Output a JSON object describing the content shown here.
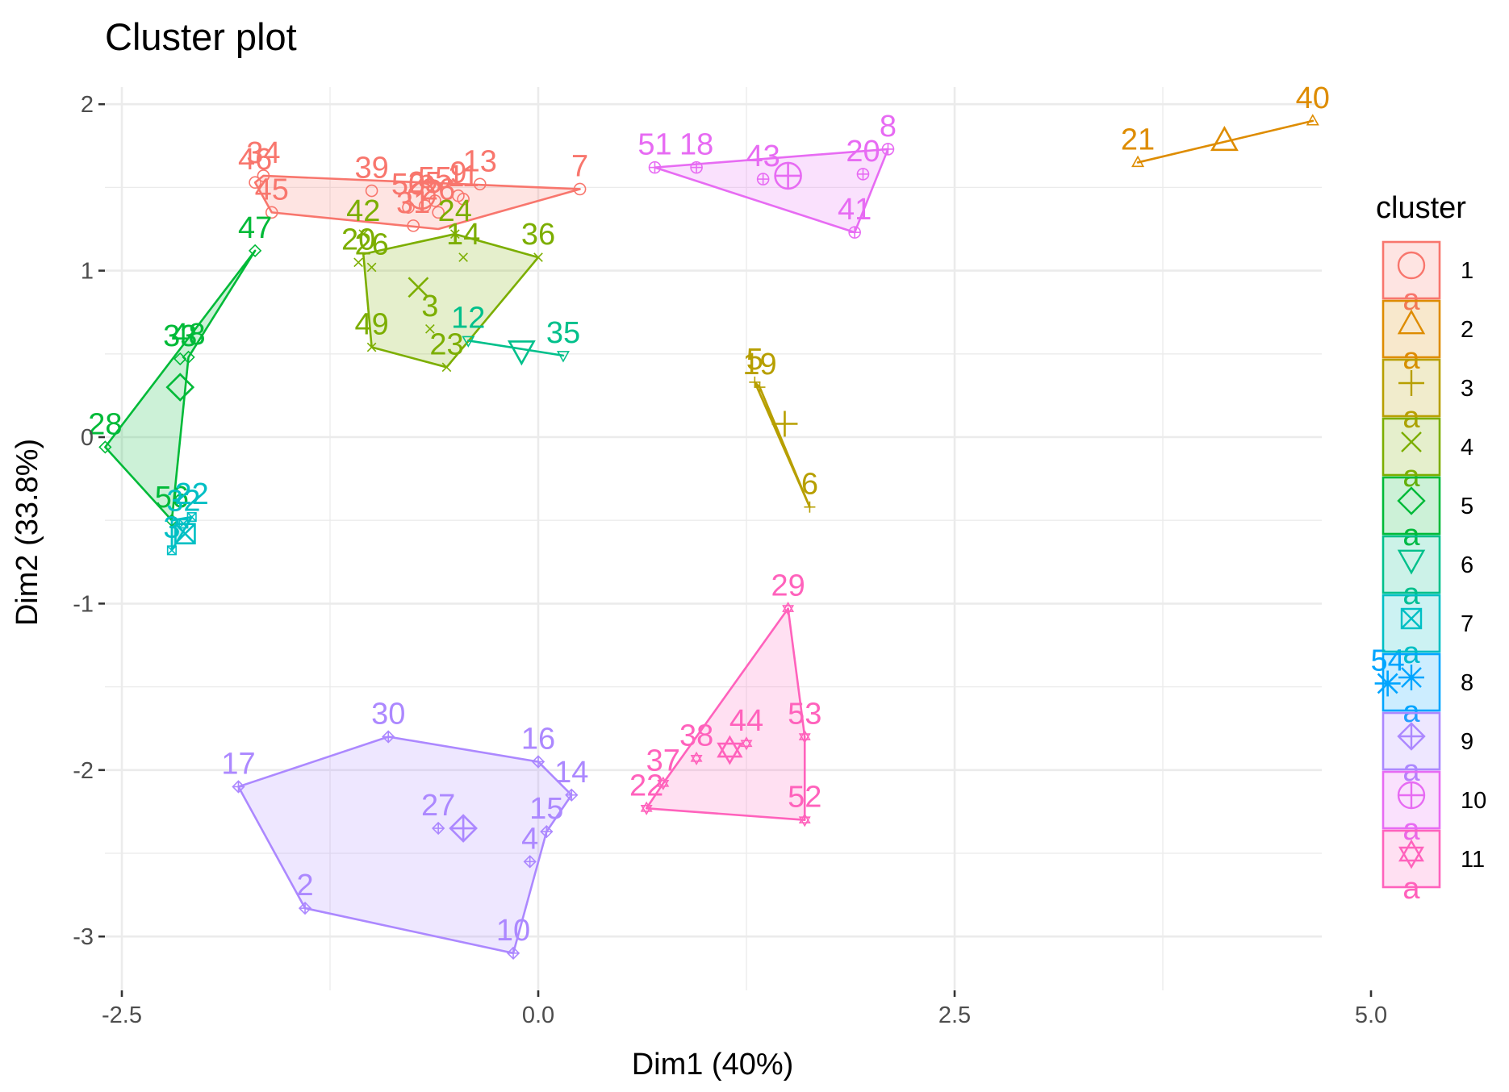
{
  "chart_data": {
    "type": "scatter",
    "title": "Cluster plot",
    "xlabel": "Dim1 (40%)",
    "ylabel": "Dim2 (33.8%)",
    "xlim": [
      -2.95,
      5.5
    ],
    "ylim": [
      -3.35,
      2.15
    ],
    "x_ticks": [
      -2.5,
      0.0,
      2.5,
      5.0
    ],
    "x_tick_labels": [
      "-2.5",
      "0.0",
      "2.5",
      "5.0"
    ],
    "y_ticks": [
      2,
      1,
      0,
      -1,
      -2,
      -3
    ],
    "y_tick_labels": [
      "2",
      "1",
      "0",
      "-1",
      "-2",
      "-3"
    ],
    "grid": true,
    "legend": {
      "title": "cluster",
      "position": "right",
      "key_letter": "a"
    },
    "clusters": [
      {
        "name": "1",
        "color": "#F8766D",
        "shape": "circle",
        "center": [
          -0.7,
          1.45
        ],
        "hull": [
          [
            -1.65,
            1.57
          ],
          [
            0.25,
            1.49
          ],
          [
            -0.6,
            1.25
          ],
          [
            -1.6,
            1.35
          ],
          [
            -1.7,
            1.53
          ]
        ],
        "points": [
          {
            "label": "34",
            "x": -1.65,
            "y": 1.57
          },
          {
            "label": "46",
            "x": -1.7,
            "y": 1.53
          },
          {
            "label": "39",
            "x": -1.0,
            "y": 1.48
          },
          {
            "label": "13",
            "x": -0.35,
            "y": 1.52
          },
          {
            "label": "9",
            "x": -0.48,
            "y": 1.45
          },
          {
            "label": "11",
            "x": -0.45,
            "y": 1.43
          },
          {
            "label": "7",
            "x": 0.25,
            "y": 1.49
          },
          {
            "label": "50",
            "x": -0.78,
            "y": 1.38
          },
          {
            "label": "25",
            "x": -0.68,
            "y": 1.39
          },
          {
            "label": "26",
            "x": -0.6,
            "y": 1.35
          },
          {
            "label": "55",
            "x": -0.62,
            "y": 1.42
          },
          {
            "label": "31",
            "x": -0.75,
            "y": 1.27
          },
          {
            "label": "45",
            "x": -1.6,
            "y": 1.35
          }
        ]
      },
      {
        "name": "2",
        "color": "#DE8C00",
        "shape": "triangle",
        "center": [
          4.12,
          1.78
        ],
        "hull": [
          [
            3.6,
            1.65
          ],
          [
            4.65,
            1.9
          ]
        ],
        "points": [
          {
            "label": "21",
            "x": 3.6,
            "y": 1.65
          },
          {
            "label": "40",
            "x": 4.65,
            "y": 1.9
          }
        ]
      },
      {
        "name": "3",
        "color": "#B79F00",
        "shape": "plus",
        "center": [
          1.48,
          0.08
        ],
        "hull": [
          [
            1.3,
            0.33
          ],
          [
            1.63,
            -0.42
          ],
          [
            1.33,
            0.3
          ]
        ],
        "points": [
          {
            "label": "5",
            "x": 1.3,
            "y": 0.33
          },
          {
            "label": "19",
            "x": 1.33,
            "y": 0.3
          },
          {
            "label": "6",
            "x": 1.63,
            "y": -0.42
          }
        ]
      },
      {
        "name": "4",
        "color": "#7CAE00",
        "shape": "cross",
        "center": [
          -0.72,
          0.9
        ],
        "hull": [
          [
            -1.05,
            1.1
          ],
          [
            -0.5,
            1.22
          ],
          [
            0.0,
            1.08
          ],
          [
            -0.55,
            0.42
          ],
          [
            -1.0,
            0.54
          ]
        ],
        "points": [
          {
            "label": "42",
            "x": -1.05,
            "y": 1.22
          },
          {
            "label": "20",
            "x": -1.08,
            "y": 1.05
          },
          {
            "label": "26",
            "x": -1.0,
            "y": 1.02
          },
          {
            "label": "24",
            "x": -0.5,
            "y": 1.22
          },
          {
            "label": "14",
            "x": -0.45,
            "y": 1.08
          },
          {
            "label": "36",
            "x": 0.0,
            "y": 1.08
          },
          {
            "label": "3",
            "x": -0.65,
            "y": 0.65
          },
          {
            "label": "49",
            "x": -1.0,
            "y": 0.54
          },
          {
            "label": "23",
            "x": -0.55,
            "y": 0.42
          }
        ]
      },
      {
        "name": "5",
        "color": "#00BA38",
        "shape": "diamond",
        "center": [
          -2.15,
          0.3
        ],
        "hull": [
          [
            -1.7,
            1.12
          ],
          [
            -2.1,
            0.48
          ],
          [
            -2.2,
            -0.5
          ],
          [
            -2.6,
            -0.06
          ]
        ],
        "points": [
          {
            "label": "47",
            "x": -1.7,
            "y": 1.12
          },
          {
            "label": "48",
            "x": -2.1,
            "y": 0.48
          },
          {
            "label": "33",
            "x": -2.15,
            "y": 0.47
          },
          {
            "label": "28",
            "x": -2.6,
            "y": -0.06
          },
          {
            "label": "56",
            "x": -2.2,
            "y": -0.5
          }
        ]
      },
      {
        "name": "6",
        "color": "#00C08B",
        "shape": "triangle-down",
        "center": [
          -0.1,
          0.52
        ],
        "hull": [
          [
            -0.42,
            0.58
          ],
          [
            0.15,
            0.49
          ]
        ],
        "points": [
          {
            "label": "12",
            "x": -0.42,
            "y": 0.58
          },
          {
            "label": "35",
            "x": 0.15,
            "y": 0.49
          }
        ]
      },
      {
        "name": "7",
        "color": "#00BFC4",
        "shape": "square-cross",
        "center": [
          -2.12,
          -0.58
        ],
        "hull": [
          [
            -2.2,
            -0.5
          ],
          [
            -2.08,
            -0.48
          ],
          [
            -2.2,
            -0.68
          ]
        ],
        "points": [
          {
            "label": "22",
            "x": -2.08,
            "y": -0.48
          },
          {
            "label": "32",
            "x": -2.13,
            "y": -0.52
          },
          {
            "label": "3",
            "x": -2.2,
            "y": -0.68
          }
        ]
      },
      {
        "name": "8",
        "color": "#00A5FF",
        "shape": "asterisk",
        "center": [
          5.1,
          -1.48
        ],
        "hull": [],
        "points": [
          {
            "label": "54",
            "x": 5.1,
            "y": -1.48
          }
        ]
      },
      {
        "name": "9",
        "color": "#AC88FF",
        "shape": "diamond-plus",
        "center": [
          -0.45,
          -2.35
        ],
        "hull": [
          [
            -0.9,
            -1.8
          ],
          [
            0.0,
            -1.95
          ],
          [
            0.2,
            -2.15
          ],
          [
            0.05,
            -2.37
          ],
          [
            -0.15,
            -3.1
          ],
          [
            -1.4,
            -2.83
          ],
          [
            -1.8,
            -2.1
          ]
        ],
        "points": [
          {
            "label": "30",
            "x": -0.9,
            "y": -1.8
          },
          {
            "label": "16",
            "x": 0.0,
            "y": -1.95
          },
          {
            "label": "14",
            "x": 0.2,
            "y": -2.15
          },
          {
            "label": "17",
            "x": -1.8,
            "y": -2.1
          },
          {
            "label": "27",
            "x": -0.6,
            "y": -2.35
          },
          {
            "label": "15",
            "x": 0.05,
            "y": -2.37
          },
          {
            "label": "4",
            "x": -0.05,
            "y": -2.55
          },
          {
            "label": "2",
            "x": -1.4,
            "y": -2.83
          },
          {
            "label": "10",
            "x": -0.15,
            "y": -3.1
          }
        ]
      },
      {
        "name": "10",
        "color": "#E76BF3",
        "shape": "circle-plus",
        "center": [
          1.5,
          1.57
        ],
        "hull": [
          [
            0.7,
            1.62
          ],
          [
            2.1,
            1.73
          ],
          [
            1.9,
            1.23
          ]
        ],
        "points": [
          {
            "label": "51",
            "x": 0.7,
            "y": 1.62
          },
          {
            "label": "18",
            "x": 0.95,
            "y": 1.62
          },
          {
            "label": "43",
            "x": 1.35,
            "y": 1.55
          },
          {
            "label": "20",
            "x": 1.95,
            "y": 1.58
          },
          {
            "label": "8",
            "x": 2.1,
            "y": 1.73
          },
          {
            "label": "41",
            "x": 1.9,
            "y": 1.23
          }
        ]
      },
      {
        "name": "11",
        "color": "#FF62BC",
        "shape": "star-of-david",
        "center": [
          1.15,
          -1.88
        ],
        "hull": [
          [
            1.5,
            -1.03
          ],
          [
            1.6,
            -1.8
          ],
          [
            1.6,
            -2.3
          ],
          [
            0.65,
            -2.23
          ],
          [
            0.75,
            -2.08
          ]
        ],
        "points": [
          {
            "label": "29",
            "x": 1.5,
            "y": -1.03
          },
          {
            "label": "38",
            "x": 0.95,
            "y": -1.93
          },
          {
            "label": "44",
            "x": 1.25,
            "y": -1.84
          },
          {
            "label": "53",
            "x": 1.6,
            "y": -1.8
          },
          {
            "label": "37",
            "x": 0.75,
            "y": -2.08
          },
          {
            "label": "22",
            "x": 0.65,
            "y": -2.23
          },
          {
            "label": "52",
            "x": 1.6,
            "y": -2.3
          }
        ]
      }
    ]
  }
}
